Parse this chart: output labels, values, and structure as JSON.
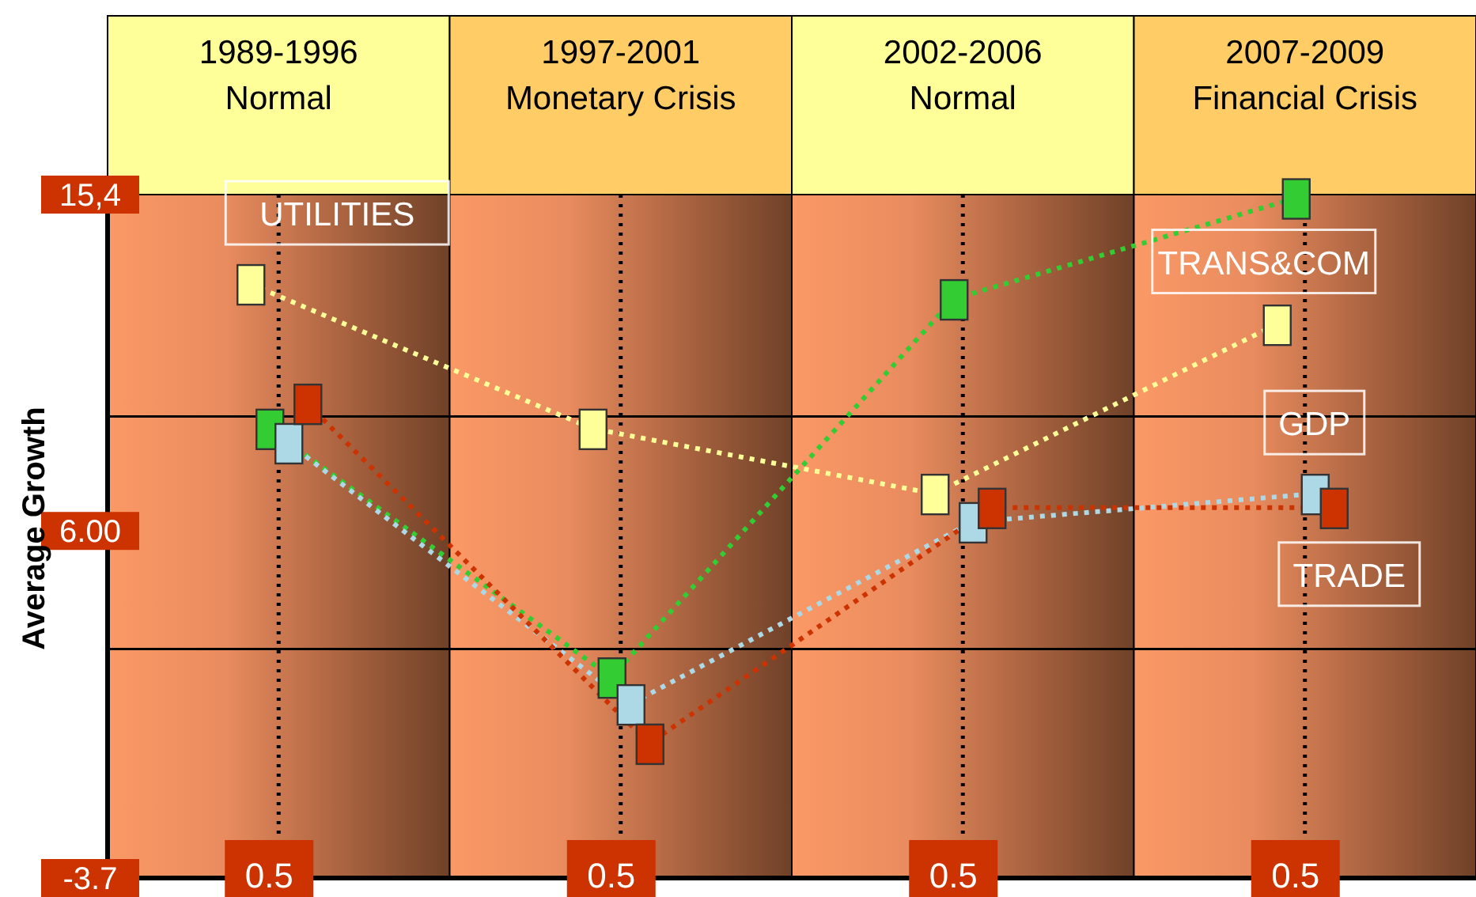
{
  "chart_data": {
    "type": "line",
    "ylabel": "Average Growth",
    "categories": [
      "0.5",
      "0.5",
      "0.5",
      "0.5"
    ],
    "annotations": [
      "1989-1996\nNormal",
      "1997-2001\nMonetary Crisis",
      "2002-2006\nNormal",
      "2007-2009\nFinancial Crisis"
    ],
    "ylim": [
      -3.7,
      15.4
    ],
    "yticks": [
      {
        "value": -3.7,
        "label": "-3.7"
      },
      {
        "value": 6,
        "label": "6.00"
      },
      {
        "value": 15.4,
        "label": "15,4"
      }
    ],
    "grid": "x",
    "marker": "square",
    "line_style": "dotted",
    "ref_lines": [
      {
        "axis": "y",
        "value": 9.2,
        "color": "#000000"
      },
      {
        "axis": "y",
        "value": 2.7,
        "color": "#000000"
      }
    ],
    "series": [
      {
        "name": "UTILITIES",
        "color": "#ffff99",
        "values": [
          12.9,
          8.86,
          7.04,
          11.77
        ]
      },
      {
        "name": "TRANS&COM",
        "color": "#33cc33",
        "values": [
          8.86,
          1.91,
          12.48,
          15.3
        ]
      },
      {
        "name": "GDP",
        "color": "#add8e6",
        "values": [
          8.46,
          1.16,
          6.25,
          7.04
        ]
      },
      {
        "name": "TRADE",
        "color": "#cc3300",
        "values": [
          9.56,
          0.06,
          6.65,
          6.65
        ]
      }
    ]
  }
}
